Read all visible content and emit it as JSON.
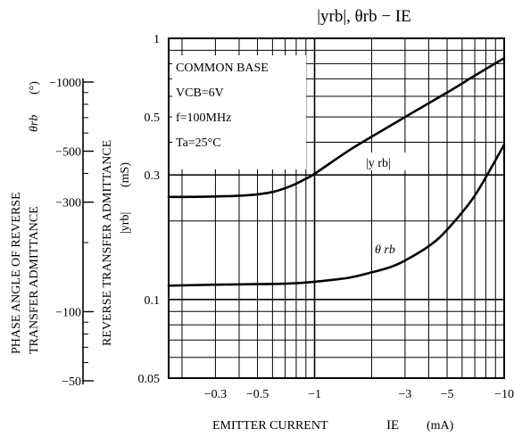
{
  "chart_data": {
    "type": "line",
    "title": "|yrb|, θrb − IE",
    "annotations": [
      "COMMON BASE",
      "VCB=6V",
      "f=100MHz",
      "Ta=25°C"
    ],
    "xlabel": "EMITTER CURRENT",
    "xlabel_symbol": "IE",
    "xlabel_unit": "(mA)",
    "x_scale": "log",
    "xlim": [
      -0.17,
      -10
    ],
    "x_ticks": [
      {
        "value": -0.3,
        "label": "−0.3"
      },
      {
        "value": -0.5,
        "label": "−0.5"
      },
      {
        "value": -1,
        "label": "−1"
      },
      {
        "value": -3,
        "label": "−3"
      },
      {
        "value": -5,
        "label": "−5"
      },
      {
        "value": -10,
        "label": "−10"
      }
    ],
    "y_left": {
      "label_line1": "PHASE ANGLE OF REVERSE",
      "label_line2": "TRANSFER ADMITTANCE",
      "label_symbol": "θrb",
      "label_unit": "(°)",
      "scale": "log",
      "lim": [
        -50,
        -1000
      ],
      "ticks": [
        {
          "value": -1000,
          "label": "−1000"
        },
        {
          "value": -500,
          "label": "−500"
        },
        {
          "value": -300,
          "label": "−300"
        },
        {
          "value": -100,
          "label": "−100"
        },
        {
          "value": -50,
          "label": "−50"
        }
      ]
    },
    "y_right": {
      "label_line1": "REVERSE TRANSFER ADMITTANCE",
      "label_symbol": "|yrb|",
      "label_unit": "(mS)",
      "scale": "log",
      "lim": [
        0.05,
        1
      ],
      "ticks": [
        {
          "value": 1,
          "label": "1"
        },
        {
          "value": 0.5,
          "label": "0.5"
        },
        {
          "value": 0.3,
          "label": "0.3"
        },
        {
          "value": 0.1,
          "label": "0.1"
        },
        {
          "value": 0.05,
          "label": "0.05"
        }
      ]
    },
    "grid": true,
    "series": [
      {
        "name": "|y rb|",
        "axis": "right",
        "x": [
          -0.17,
          -0.3,
          -0.45,
          -0.6,
          -0.75,
          -0.9,
          -1.0,
          -1.5,
          -2.0,
          -3.0,
          -5.0,
          -7.0,
          -10.0
        ],
        "y": [
          0.247,
          0.248,
          0.251,
          0.258,
          0.272,
          0.29,
          0.303,
          0.37,
          0.42,
          0.5,
          0.62,
          0.72,
          0.84
        ]
      },
      {
        "name": "θ rb",
        "axis": "left",
        "x": [
          -0.17,
          -0.3,
          -0.5,
          -0.7,
          -1.0,
          -1.5,
          -2.0,
          -2.5,
          -3.0,
          -4.0,
          -5.0,
          -7.0,
          -10.0
        ],
        "y": [
          -113,
          -114,
          -114.5,
          -115,
          -117,
          -121,
          -127,
          -133,
          -141,
          -160,
          -185,
          -250,
          -392
        ]
      }
    ]
  }
}
